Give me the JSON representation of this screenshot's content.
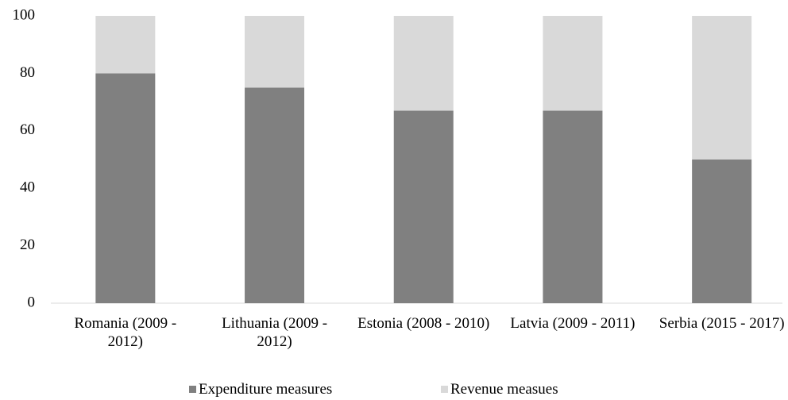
{
  "chart_data": {
    "type": "stacked-bar",
    "categories": [
      "Romania (2009 - 2012)",
      "Lithuania (2009 - 2012)",
      "Estonia (2008 - 2010)",
      "Latvia (2009 - 2011)",
      "Serbia (2015 - 2017)"
    ],
    "series": [
      {
        "name": "Expenditure measures",
        "color": "#808080",
        "values": [
          80,
          75,
          67,
          67,
          50
        ]
      },
      {
        "name": "Revenue measues",
        "color": "#d9d9d9",
        "values": [
          20,
          25,
          33,
          33,
          50
        ]
      }
    ],
    "ylim": [
      0,
      100
    ],
    "yticks": [
      0,
      20,
      40,
      60,
      80,
      100
    ],
    "grid": false
  }
}
